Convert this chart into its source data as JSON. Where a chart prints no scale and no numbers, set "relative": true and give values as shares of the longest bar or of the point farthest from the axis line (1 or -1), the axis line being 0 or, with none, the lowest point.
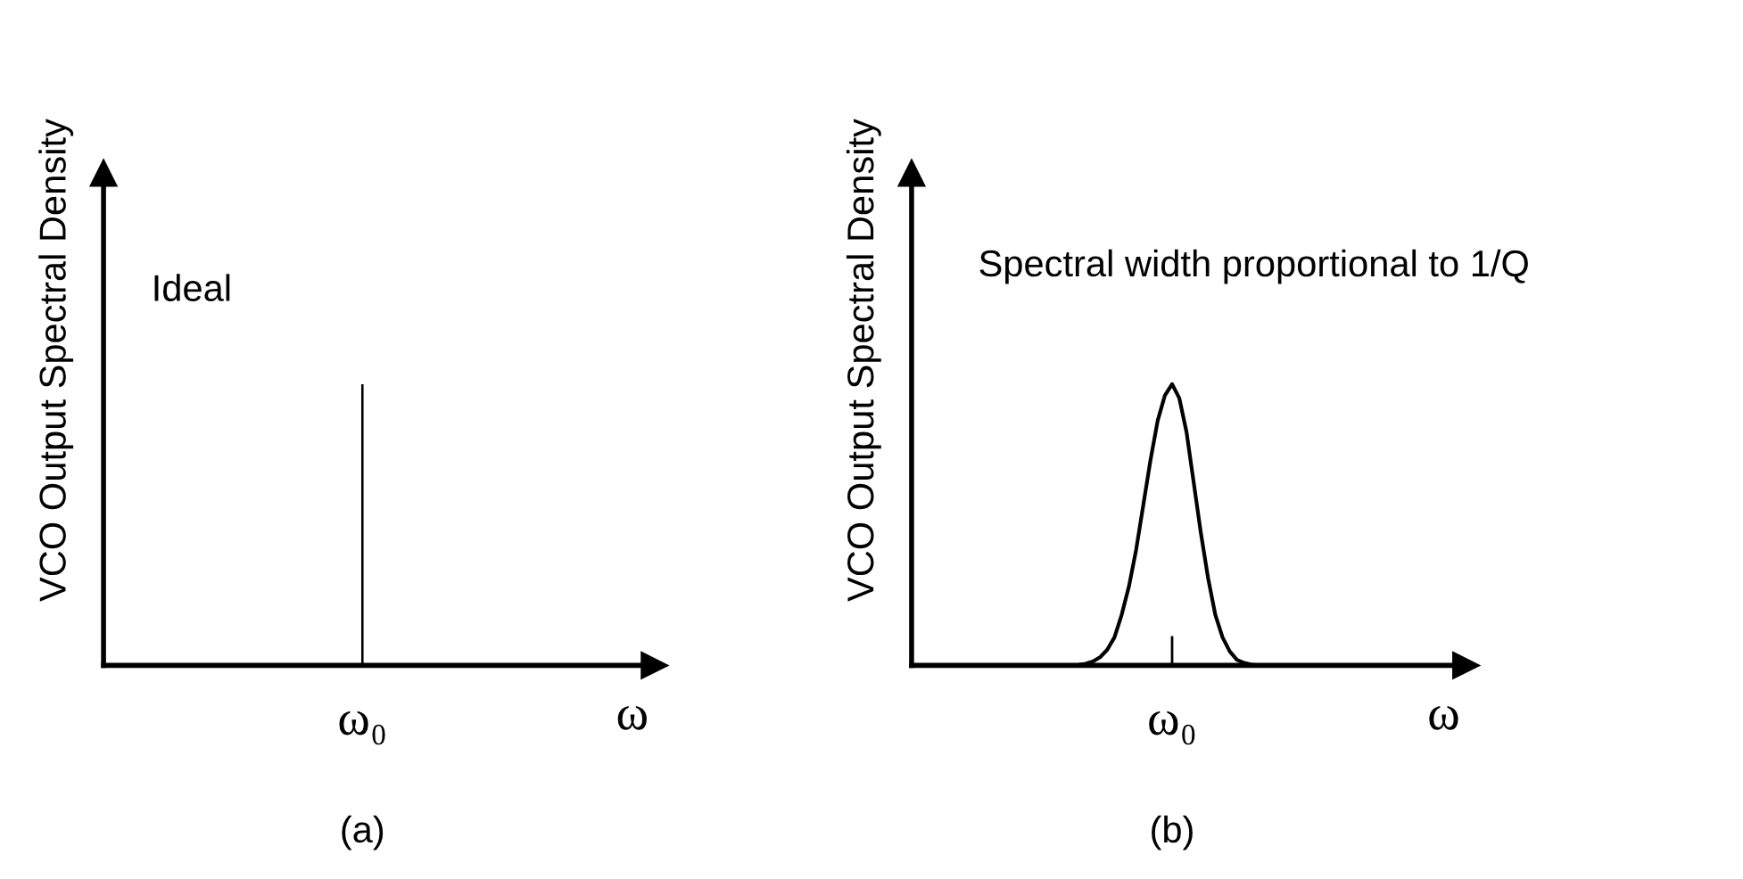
{
  "chart_data": [
    {
      "type": "bar",
      "title": "(a)",
      "xlabel": "ω",
      "ylabel": "VCO Output Spectral Density",
      "relative": true,
      "categories": [
        "ω₀"
      ],
      "values": [
        1
      ],
      "color": "#000000",
      "annotations": [
        "Ideal"
      ],
      "grid": false
    },
    {
      "type": "line",
      "title": "(b)",
      "xlabel": "ω",
      "ylabel": "VCO Output Spectral Density",
      "relative": true,
      "categories": [
        null,
        null,
        null,
        null,
        null,
        null,
        null,
        null,
        null,
        null,
        null,
        null,
        null,
        null,
        null,
        null,
        null,
        null,
        null,
        null,
        null,
        null,
        null,
        null,
        null,
        null,
        null
      ],
      "series": [
        {
          "color": "#000000",
          "values": [
            0,
            0.002,
            0.006,
            0.014,
            0.029,
            0.056,
            0.1,
            0.18,
            0.28,
            0.41,
            0.57,
            0.73,
            0.87,
            0.96,
            1,
            0.95,
            0.83,
            0.65,
            0.47,
            0.31,
            0.18,
            0.1,
            0.05,
            0.02,
            0.009,
            0.003,
            0
          ]
        }
      ],
      "annotations": [
        "ω₀",
        "Spectral width proportional to 1/Q"
      ],
      "grid": false,
      "marker": "none",
      "line_style": "solid"
    }
  ]
}
